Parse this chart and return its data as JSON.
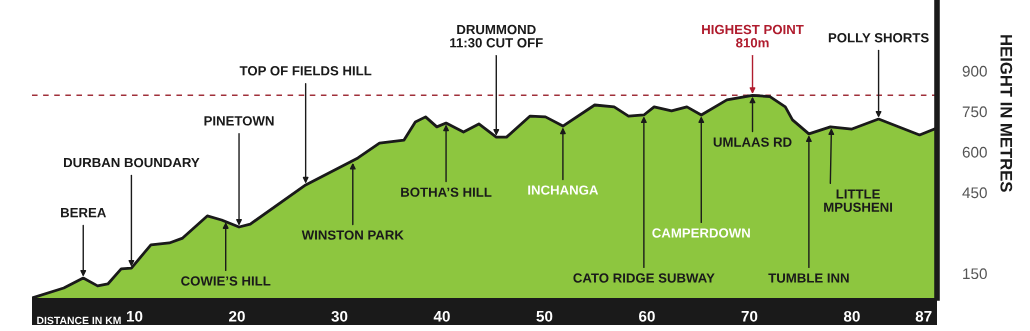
{
  "chart_data": {
    "type": "area",
    "xlabel": "DISTANCE IN KM",
    "ylabel": "HEIGHT IN METRES",
    "x": [
      0,
      3.1,
      5.0,
      6.4,
      7.4,
      8.7,
      9.7,
      11.6,
      13.4,
      14.7,
      17.1,
      18.5,
      20.2,
      21.3,
      26.7,
      31.8,
      33.9,
      36.3,
      37.4,
      38.4,
      39.5,
      40.4,
      42.1,
      43.6,
      45.3,
      46.3,
      48.6,
      50.1,
      51.8,
      54.9,
      56.8,
      58.2,
      59.7,
      60.7,
      62.4,
      63.9,
      65.3,
      67.8,
      70.3,
      72.0,
      73.5,
      74.2,
      75.8,
      77.9,
      80.0,
      82.6,
      86.6,
      88.3
    ],
    "series": [
      {
        "color": "#8dc63f",
        "values": [
          59,
          96,
          133,
          104,
          111,
          167,
          170,
          256,
          263,
          281,
          363,
          348,
          322,
          333,
          478,
          578,
          633,
          644,
          711,
          730,
          693,
          707,
          674,
          704,
          655,
          655,
          733,
          730,
          696,
          774,
          767,
          733,
          737,
          767,
          752,
          767,
          737,
          793,
          810,
          805,
          767,
          719,
          667,
          693,
          685,
          722,
          663,
          689
        ]
      }
    ],
    "xlim": [
      0,
      88.3
    ],
    "ylim": [
      59,
      1163
    ],
    "xticks": [
      10,
      20,
      30,
      40,
      50,
      60,
      70,
      80,
      87
    ],
    "yticks": [
      150,
      450,
      600,
      750,
      900
    ],
    "ref_lines": [
      {
        "axis": "y",
        "value": 810,
        "color": "#a0303a",
        "line_style": "dashed"
      }
    ],
    "annotations": [
      {
        "text": "BEREA",
        "x": 5.0,
        "y": 133
      },
      {
        "text": "DURBAN BOUNDARY",
        "x": 9.7,
        "y": 170
      },
      {
        "text": "PINETOWN",
        "x": 20.2,
        "y": 322
      },
      {
        "text": "TOP OF FIELDS HILL",
        "x": 26.7,
        "y": 478
      },
      {
        "text": "DRUMMOND\n11:30 CUT OFF",
        "x": 45.3,
        "y": 655
      },
      {
        "text": "HIGHEST POINT\n810m",
        "x": 70.3,
        "y": 810
      },
      {
        "text": "POLLY SHORTS",
        "x": 82.6,
        "y": 722
      },
      {
        "text": "COWIE’S HILL",
        "x": 18.9,
        "y": 345
      },
      {
        "text": "WINSTON PARK",
        "x": 31.3,
        "y": 565
      },
      {
        "text": "BOTHA’S HILL",
        "x": 40.4,
        "y": 707
      },
      {
        "text": "INCHANGA",
        "x": 51.8,
        "y": 696
      },
      {
        "text": "CATO RIDGE SUBWAY",
        "x": 59.7,
        "y": 737
      },
      {
        "text": "CAMPERDOWN",
        "x": 65.3,
        "y": 737
      },
      {
        "text": "UMLAAS RD",
        "x": 70.3,
        "y": 810
      },
      {
        "text": "TUMBLE INN",
        "x": 75.8,
        "y": 667
      },
      {
        "text": "LITTLE\nMPUSHENI",
        "x": 78.0,
        "y": 693
      }
    ],
    "grid": false
  }
}
